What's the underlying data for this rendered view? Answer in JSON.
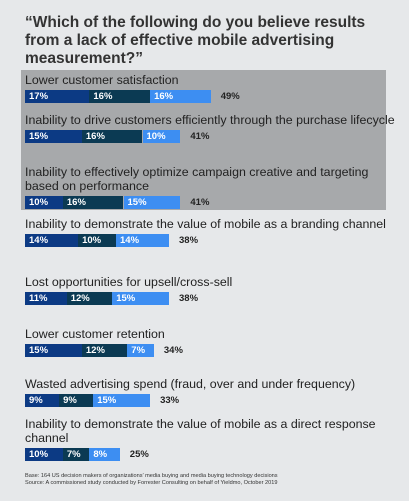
{
  "chart_data": {
    "type": "bar",
    "title": "“Which of the following do you believe results from a lack of effective mobile advertising measurement?”",
    "stacked": true,
    "categories": [
      "Lower customer satisfaction",
      "Inability to drive customers efficiently through the purchase lifecycle",
      "Inability to effectively optimize campaign creative and targeting based on performance",
      "Inability to demonstrate the value of mobile as a branding channel",
      "Lost opportunities for upsell/cross-sell",
      "Lower customer retention",
      "Wasted advertising spend (fraud, over and under frequency)",
      "Inability to demonstrate the value of mobile as a direct response channel"
    ],
    "series": [
      {
        "values": [
          17,
          15,
          10,
          14,
          11,
          15,
          9,
          10
        ]
      },
      {
        "values": [
          16,
          16,
          16,
          10,
          12,
          12,
          9,
          7
        ]
      },
      {
        "values": [
          16,
          10,
          15,
          14,
          15,
          7,
          15,
          8
        ]
      }
    ],
    "segment_labels": [
      [
        "17%",
        "16%",
        "16%"
      ],
      [
        "15%",
        "16%",
        "10%"
      ],
      [
        "10%",
        "16%",
        "15%"
      ],
      [
        "14%",
        "10%",
        "14%"
      ],
      [
        "11%",
        "12%",
        "15%"
      ],
      [
        "15%",
        "12%",
        "7%"
      ],
      [
        "9%",
        "9%",
        "15%"
      ],
      [
        "10%",
        "7%",
        "8%"
      ]
    ],
    "totals": [
      "49%",
      "41%",
      "41%",
      "38%",
      "38%",
      "34%",
      "33%",
      "25%"
    ],
    "highlighted_rows": [
      0,
      1,
      2
    ],
    "colors": [
      "#0c3a84",
      "#0b3a53",
      "#3d8ef2"
    ],
    "highlight_color": "#a7a9ab"
  },
  "source_lines": [
    "Base: 164 US decision makers of organizations’ media buying and media buying technology decisions",
    "Source: A commissioned study conducted by Forrester Consulting on behalf of Yieldmo, October 2019"
  ]
}
